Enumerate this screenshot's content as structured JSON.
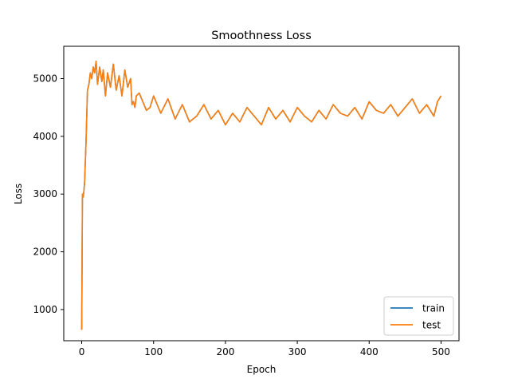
{
  "chart_data": {
    "type": "line",
    "title": "Smoothness Loss",
    "xlabel": "Epoch",
    "ylabel": "Loss",
    "xlim": [
      -25,
      525
    ],
    "ylim": [
      460,
      5560
    ],
    "xticks": [
      0,
      100,
      200,
      300,
      400,
      500
    ],
    "yticks": [
      1000,
      2000,
      3000,
      4000,
      5000
    ],
    "grid": false,
    "legend_position": "lower-right",
    "series": [
      {
        "name": "train",
        "color": "#1f77b4",
        "x": [
          0,
          1,
          2,
          3,
          4,
          6,
          8,
          10,
          12,
          14,
          16,
          18,
          20,
          22,
          25,
          28,
          30,
          33,
          36,
          40,
          44,
          48,
          52,
          56,
          60,
          64,
          68,
          70,
          72,
          74,
          76,
          80,
          85,
          90,
          95,
          100,
          110,
          120,
          130,
          140,
          150,
          160,
          170,
          180,
          190,
          200,
          210,
          220,
          230,
          240,
          250,
          260,
          270,
          280,
          290,
          300,
          310,
          320,
          330,
          340,
          350,
          360,
          370,
          380,
          390,
          400,
          410,
          420,
          430,
          440,
          450,
          460,
          470,
          480,
          490,
          495,
          500
        ],
        "y": [
          650,
          3000,
          2950,
          3050,
          3200,
          3900,
          4800,
          4900,
          5100,
          5000,
          5200,
          5100,
          5300,
          4900,
          5200,
          4950,
          5150,
          4700,
          5100,
          4850,
          5250,
          4800,
          5050,
          4700,
          5150,
          4850,
          5000,
          4550,
          4600,
          4500,
          4700,
          4750,
          4600,
          4450,
          4500,
          4700,
          4400,
          4650,
          4300,
          4550,
          4250,
          4350,
          4550,
          4300,
          4450,
          4200,
          4400,
          4250,
          4500,
          4350,
          4200,
          4500,
          4300,
          4450,
          4250,
          4500,
          4350,
          4250,
          4450,
          4300,
          4550,
          4400,
          4350,
          4500,
          4300,
          4600,
          4450,
          4400,
          4550,
          4350,
          4500,
          4650,
          4400,
          4550,
          4350,
          4600,
          4700
        ]
      },
      {
        "name": "test",
        "color": "#ff7f0e",
        "x": [
          0,
          1,
          2,
          3,
          4,
          6,
          8,
          10,
          12,
          14,
          16,
          18,
          20,
          22,
          25,
          28,
          30,
          33,
          36,
          40,
          44,
          48,
          52,
          56,
          60,
          64,
          68,
          70,
          72,
          74,
          76,
          80,
          85,
          90,
          95,
          100,
          110,
          120,
          130,
          140,
          150,
          160,
          170,
          180,
          190,
          200,
          210,
          220,
          230,
          240,
          250,
          260,
          270,
          280,
          290,
          300,
          310,
          320,
          330,
          340,
          350,
          360,
          370,
          380,
          390,
          400,
          410,
          420,
          430,
          440,
          450,
          460,
          470,
          480,
          490,
          495,
          500
        ],
        "y": [
          650,
          3000,
          2950,
          3050,
          3200,
          3900,
          4800,
          4900,
          5100,
          5000,
          5200,
          5100,
          5300,
          4900,
          5200,
          4950,
          5150,
          4700,
          5100,
          4850,
          5250,
          4800,
          5050,
          4700,
          5150,
          4850,
          5000,
          4550,
          4600,
          4500,
          4700,
          4750,
          4600,
          4450,
          4500,
          4700,
          4400,
          4650,
          4300,
          4550,
          4250,
          4350,
          4550,
          4300,
          4450,
          4200,
          4400,
          4250,
          4500,
          4350,
          4200,
          4500,
          4300,
          4450,
          4250,
          4500,
          4350,
          4250,
          4450,
          4300,
          4550,
          4400,
          4350,
          4500,
          4300,
          4600,
          4450,
          4400,
          4550,
          4350,
          4500,
          4650,
          4400,
          4550,
          4350,
          4600,
          4700
        ]
      }
    ]
  }
}
